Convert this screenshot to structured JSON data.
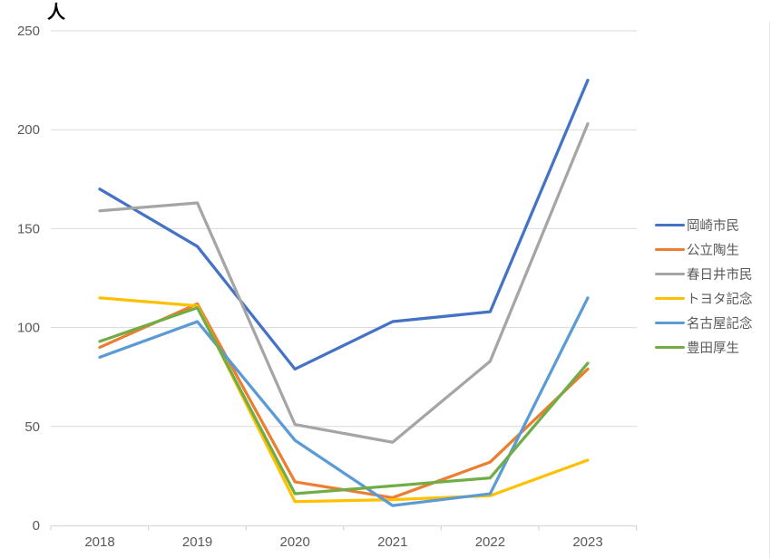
{
  "chart_data": {
    "type": "line",
    "title": "",
    "ylabel": "人",
    "xlabel": "",
    "categories": [
      "2018",
      "2019",
      "2020",
      "2021",
      "2022",
      "2023"
    ],
    "ylim": [
      0,
      250
    ],
    "yticks": [
      0,
      50,
      100,
      150,
      200,
      250
    ],
    "grid": "horizontal",
    "legend_position": "right",
    "series": [
      {
        "name": "岡崎市民",
        "color": "#4472C4",
        "values": [
          170,
          141,
          79,
          103,
          108,
          225
        ]
      },
      {
        "name": "公立陶生",
        "color": "#ED7D31",
        "values": [
          90,
          112,
          22,
          14,
          32,
          79
        ]
      },
      {
        "name": "春日井市民",
        "color": "#A5A5A5",
        "values": [
          159,
          163,
          51,
          42,
          83,
          203
        ]
      },
      {
        "name": "トヨタ記念",
        "color": "#FFC000",
        "values": [
          115,
          111,
          12,
          13,
          15,
          33
        ]
      },
      {
        "name": "名古屋記念",
        "color": "#5B9BD5",
        "values": [
          85,
          103,
          43,
          10,
          16,
          115
        ]
      },
      {
        "name": "豊田厚生",
        "color": "#70AD47",
        "values": [
          93,
          110,
          16,
          20,
          24,
          82
        ]
      }
    ]
  },
  "colors": {
    "background": "#FFFFFF",
    "gridline": "#D9D9D9",
    "axis_line": "#D9D9D9",
    "tick_label": "#595959",
    "legend_text": "#595959",
    "ylabel_text": "#000000"
  }
}
